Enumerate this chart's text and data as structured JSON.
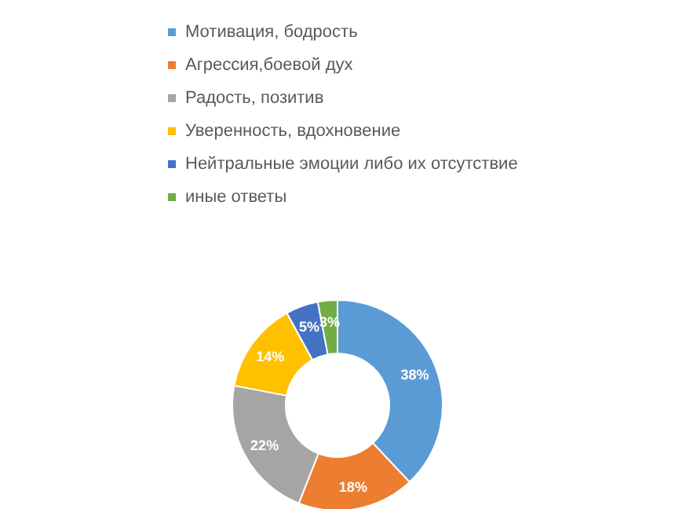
{
  "chart_data": {
    "type": "donut",
    "categories": [
      "Мотивация, бодрость",
      "Агрессия,боевой дух",
      "Радость, позитив",
      "Уверенность, вдохновение",
      "Нейтральные эмоции либо их отсутствие",
      "иные ответы"
    ],
    "values": [
      38,
      18,
      22,
      14,
      5,
      3
    ],
    "colors": [
      "#5b9bd5",
      "#ed7d31",
      "#a5a5a5",
      "#ffc000",
      "#4472c4",
      "#70ad47"
    ],
    "value_labels": [
      "38%",
      "18%",
      "22%",
      "14%",
      "5%",
      "3%"
    ],
    "legend": "top"
  }
}
